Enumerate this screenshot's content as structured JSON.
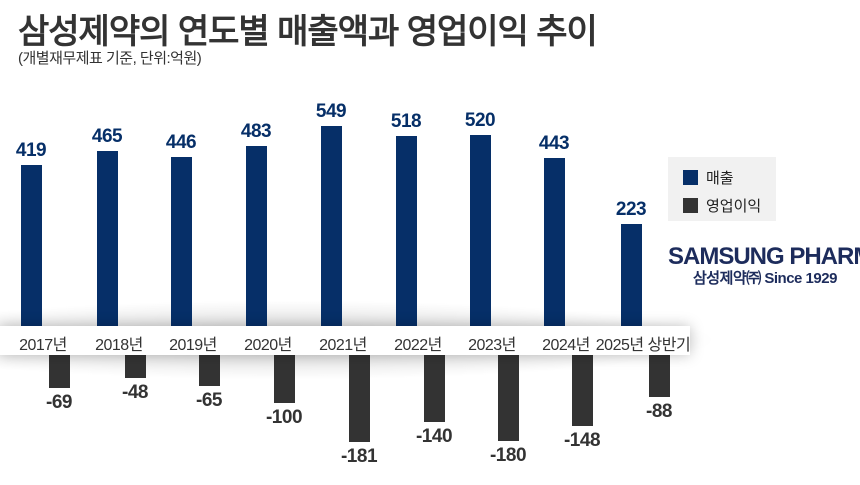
{
  "header": {
    "title": "삼성제약의 연도별 매출액과 영업이익 추이",
    "subtitle": "(개별재무제표 기준, 단위:억원)"
  },
  "legend": {
    "items": [
      {
        "label": "매출",
        "color": "#062f68"
      },
      {
        "label": "영업이익",
        "color": "#333333"
      }
    ]
  },
  "logo": {
    "name": "SAMSUNG PHARM",
    "tagline": "삼성제약㈜ Since 1929"
  },
  "colors": {
    "revenue": "#062f68",
    "operating_profit": "#333333",
    "text": "#333333"
  },
  "chart_data": {
    "type": "bar",
    "title": "삼성제약의 연도별 매출액과 영업이익 추이",
    "subtitle": "(개별재무제표 기준, 단위:억원)",
    "xlabel": "",
    "ylabel": "억원",
    "categories": [
      "2017년",
      "2018년",
      "2019년",
      "2020년",
      "2021년",
      "2022년",
      "2023년",
      "2024년",
      "2025년 상반기"
    ],
    "series": [
      {
        "name": "매출",
        "values": [
          419,
          465,
          446,
          483,
          549,
          518,
          520,
          443,
          223
        ]
      },
      {
        "name": "영업이익",
        "values": [
          -69,
          -48,
          -65,
          -100,
          -181,
          -140,
          -180,
          -148,
          -88
        ]
      }
    ],
    "grid": false,
    "legend_position": "right",
    "data_labels": true
  }
}
